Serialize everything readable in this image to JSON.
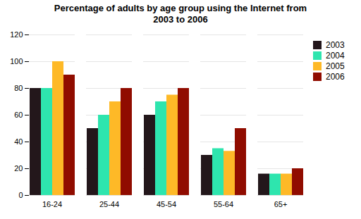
{
  "chart_data": {
    "type": "bar",
    "title": "Percentage of adults by age group using the Internet from\n2003 to 2006",
    "categories": [
      "16-24",
      "25-44",
      "45-54",
      "55-64",
      "65+"
    ],
    "series": [
      {
        "name": "2003",
        "values": [
          80,
          50,
          60,
          30,
          16
        ]
      },
      {
        "name": "2004",
        "values": [
          80,
          60,
          70,
          35,
          16
        ]
      },
      {
        "name": "2005",
        "values": [
          100,
          70,
          75,
          33,
          16
        ]
      },
      {
        "name": "2006",
        "values": [
          90,
          80,
          80,
          50,
          20
        ]
      }
    ],
    "ylim": [
      0,
      120
    ],
    "yticks": [
      0,
      20,
      40,
      60,
      80,
      100,
      120
    ],
    "grid": true,
    "legend": "right"
  }
}
